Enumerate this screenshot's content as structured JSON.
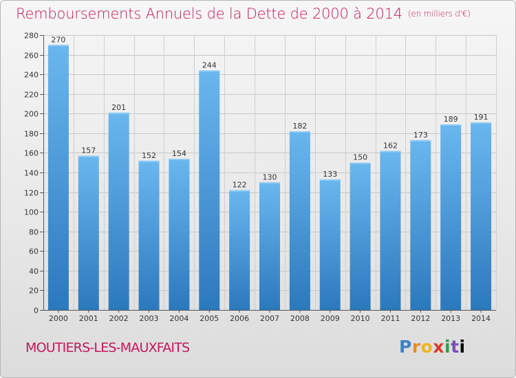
{
  "header": {
    "title": "Remboursements Annuels de la Dette de 2000 à 2014",
    "unit": "(en milliers d'€)"
  },
  "footer": {
    "city": "MOUTIERS-LES-MAUXFAITS",
    "logo": "Proxiti"
  },
  "colors": {
    "title": "#c2185b",
    "bar_light": "#6ab7ef",
    "bar_dark": "#2b79bd"
  },
  "chart_data": {
    "type": "bar",
    "title": "Remboursements Annuels de la Dette de 2000 à 2014",
    "ylabel": "",
    "xlabel": "",
    "ylim": [
      0,
      280
    ],
    "ytick_step": 20,
    "grid": true,
    "categories": [
      "2000",
      "2001",
      "2002",
      "2003",
      "2004",
      "2005",
      "2006",
      "2007",
      "2008",
      "2009",
      "2010",
      "2011",
      "2012",
      "2013",
      "2014"
    ],
    "values": [
      270,
      157,
      201,
      152,
      154,
      244,
      122,
      130,
      182,
      133,
      150,
      162,
      173,
      189,
      191
    ]
  }
}
